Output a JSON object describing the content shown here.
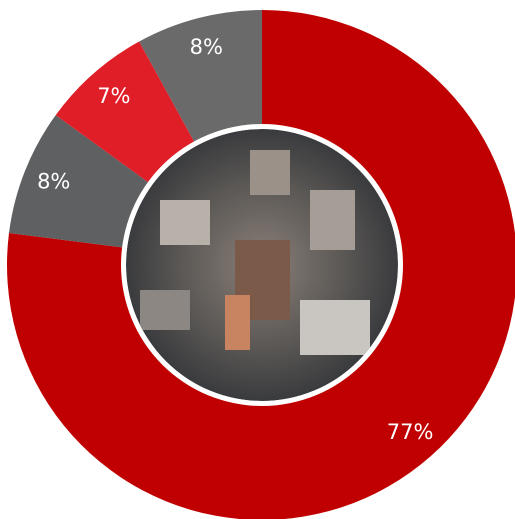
{
  "chart_data": {
    "type": "donut",
    "values": [
      77,
      8,
      7,
      8
    ],
    "value_labels": [
      "77%",
      "8%",
      "7%",
      "8%"
    ],
    "colors": [
      "#c00000",
      "#5e6062",
      "#e01e28",
      "#6a6a6b"
    ]
  }
}
